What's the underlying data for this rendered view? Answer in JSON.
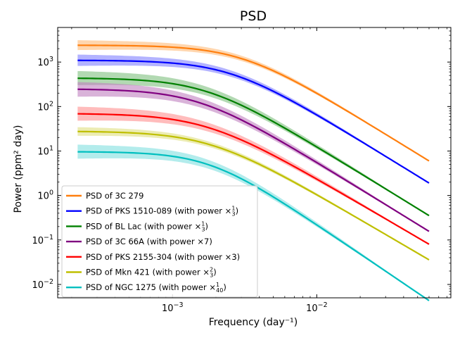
{
  "chart_data": {
    "type": "line",
    "title": "PSD",
    "xlabel": "Frequency (day⁻¹)",
    "ylabel": "Power (ppm² day)",
    "xscale": "log",
    "yscale": "log",
    "xlim": [
      0.00016,
      0.085
    ],
    "ylim": [
      0.005,
      6000
    ],
    "x_ticks": [
      {
        "value": 0.001,
        "base": "10",
        "exp": "−3"
      },
      {
        "value": 0.01,
        "base": "10",
        "exp": "−2"
      }
    ],
    "y_ticks": [
      {
        "value": 0.01,
        "base": "10",
        "exp": "−2"
      },
      {
        "value": 0.1,
        "base": "10",
        "exp": "−1"
      },
      {
        "value": 1,
        "base": "10",
        "exp": "0"
      },
      {
        "value": 10,
        "base": "10",
        "exp": "1"
      },
      {
        "value": 100,
        "base": "10",
        "exp": "2"
      },
      {
        "value": 1000,
        "base": "10",
        "exp": "3"
      }
    ],
    "legend_position": "lower-left",
    "series": [
      {
        "name": "PSD of 3C 279",
        "label_main": "PSD of 3C 279",
        "frac": null,
        "label_suffix": "",
        "color": "#ff7f0e",
        "band_color": "#ffbb78",
        "x_start": 0.00022,
        "x_end": 0.06,
        "amp": 2400,
        "knee": 0.003,
        "slope": 2.0,
        "band_low": 0.78,
        "band_high": 1.3
      },
      {
        "name": "PSD of PKS 1510-089 (with power ×1/3)",
        "label_main": "PSD of PKS 1510-089 (with power ×",
        "frac": {
          "num": "1",
          "den": "3"
        },
        "label_suffix": ")",
        "color": "#0000ff",
        "band_color": "#8080ff",
        "x_start": 0.00022,
        "x_end": 0.06,
        "amp": 1100,
        "knee": 0.0025,
        "slope": 2.0,
        "band_low": 0.75,
        "band_high": 1.35
      },
      {
        "name": "PSD of BL Lac (with power ×1/3)",
        "label_main": "PSD of BL Lac (with power ×",
        "frac": {
          "num": "1",
          "den": "3"
        },
        "label_suffix": ")",
        "color": "#008000",
        "band_color": "#7fbf7f",
        "x_start": 0.00022,
        "x_end": 0.06,
        "amp": 440,
        "knee": 0.0017,
        "slope": 2.0,
        "band_low": 0.7,
        "band_high": 1.45
      },
      {
        "name": "PSD of 3C 66A (with power ×7)",
        "label_main": "PSD of 3C 66A (with power ×7)",
        "frac": null,
        "label_suffix": "",
        "color": "#800080",
        "band_color": "#c080c0",
        "x_start": 0.00022,
        "x_end": 0.06,
        "amp": 250,
        "knee": 0.0015,
        "slope": 2.0,
        "band_low": 0.68,
        "band_high": 1.45
      },
      {
        "name": "PSD of PKS 2155-304 (with power ×3)",
        "label_main": "PSD of PKS 2155-304 (with power ×3)",
        "frac": null,
        "label_suffix": "",
        "color": "#ff0000",
        "band_color": "#ff9090",
        "x_start": 0.00022,
        "x_end": 0.06,
        "amp": 70,
        "knee": 0.0017,
        "slope": 1.9,
        "band_low": 0.7,
        "band_high": 1.45
      },
      {
        "name": "PSD of Mkn 421 (with power ×2/3)",
        "label_main": "PSD of Mkn 421 (with power ×",
        "frac": {
          "num": "2",
          "den": "3"
        },
        "label_suffix": ")",
        "color": "#bfbf00",
        "band_color": "#dfdf80",
        "x_start": 0.00022,
        "x_end": 0.06,
        "amp": 28,
        "knee": 0.0018,
        "slope": 1.9,
        "band_low": 0.8,
        "band_high": 1.25
      },
      {
        "name": "PSD of NGC 1275 (with power ×1/40)",
        "label_main": "PSD of NGC 1275 (with power ×",
        "frac": {
          "num": "1",
          "den": "40"
        },
        "label_suffix": ")",
        "color": "#00bfbf",
        "band_color": "#80dfdf",
        "x_start": 0.00022,
        "x_end": 0.06,
        "amp": 9.7,
        "knee": 0.0018,
        "slope": 2.2,
        "band_low": 0.7,
        "band_high": 1.45
      }
    ]
  }
}
